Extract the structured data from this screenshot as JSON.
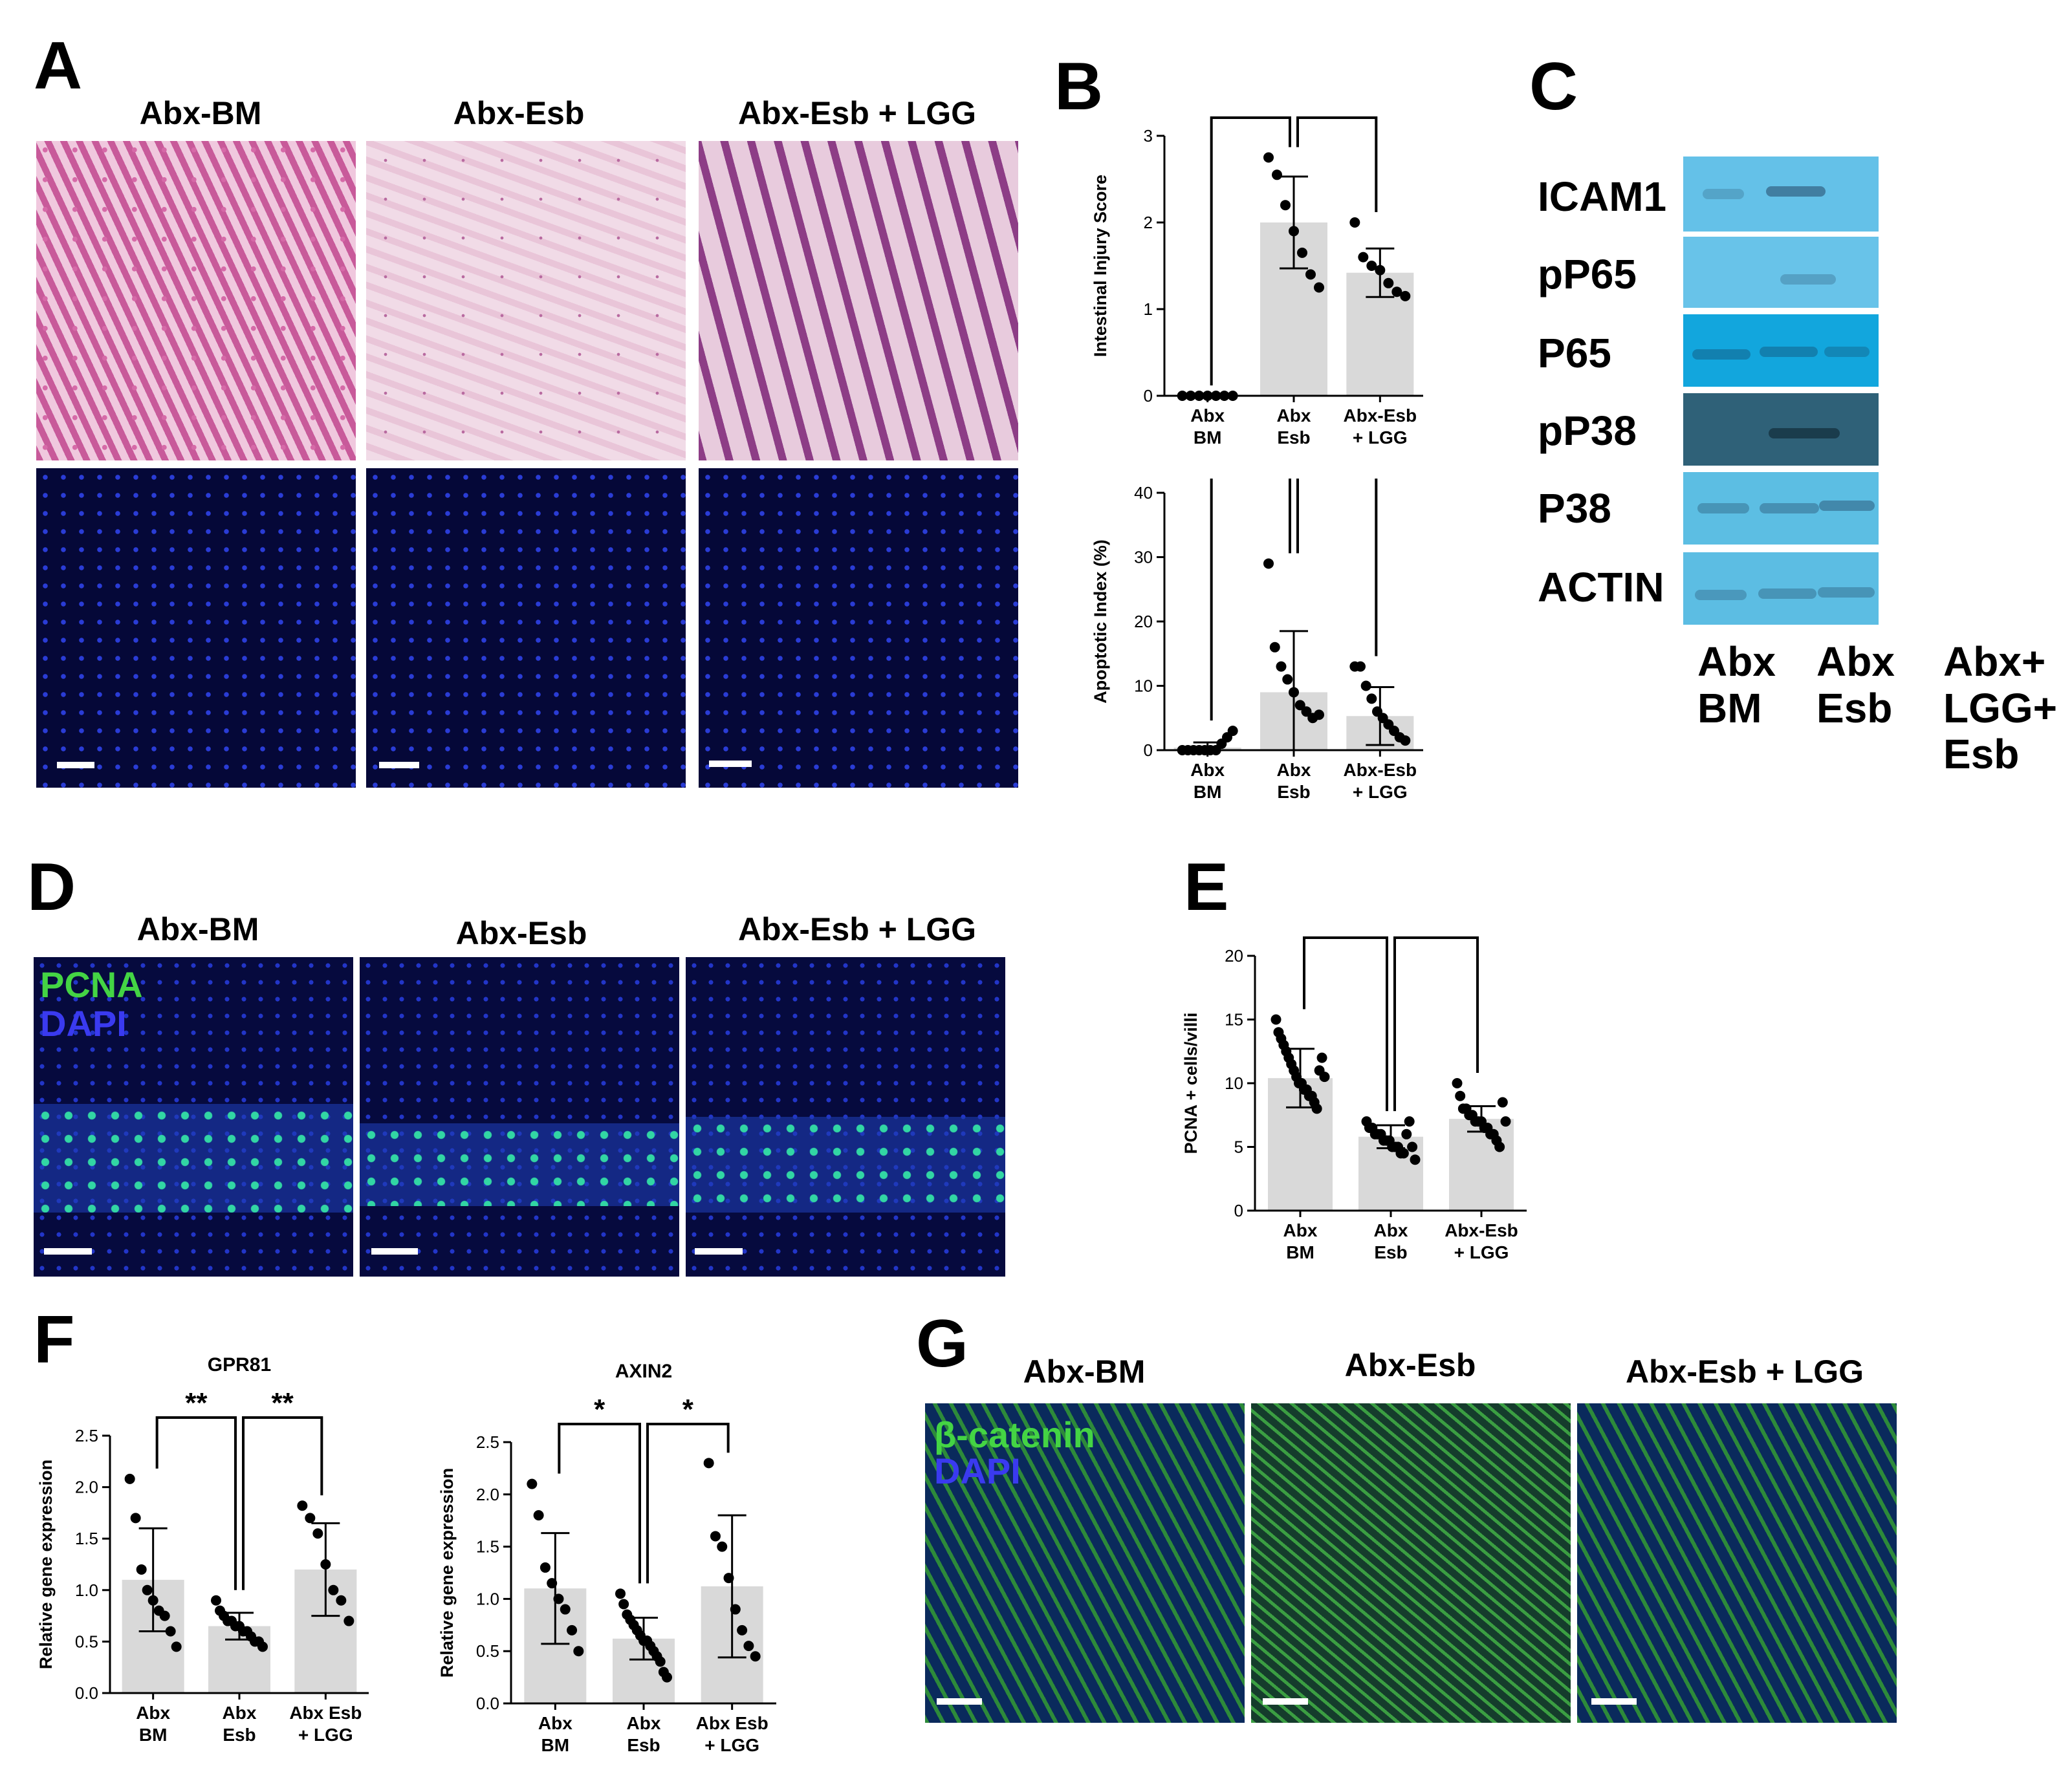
{
  "panels": {
    "A": {
      "label": "A",
      "columns": [
        "Abx-BM",
        "Abx-Esb",
        "Abx-Esb + LGG"
      ]
    },
    "C": {
      "label": "C",
      "rows": [
        "ICAM1",
        "pP65",
        "P65",
        "pP38",
        "P38",
        "ACTIN"
      ],
      "lanes": [
        [
          "Abx",
          "BM"
        ],
        [
          "Abx",
          "Esb"
        ],
        [
          "Abx+",
          "LGG+",
          "Esb"
        ]
      ]
    },
    "D": {
      "label": "D",
      "columns": [
        "Abx-BM",
        "Abx-Esb",
        "Abx-Esb + LGG"
      ],
      "stain_primary": "PCNA",
      "stain_secondary": "DAPI"
    },
    "G": {
      "label": "G",
      "columns": [
        "Abx-BM",
        "Abx-Esb",
        "Abx-Esb + LGG"
      ],
      "stain_primary": "β-catenin",
      "stain_secondary": "DAPI"
    }
  },
  "colors": {
    "pcna": "#44d444",
    "dapi": "#3a3af0",
    "bar": "#d9d9d9",
    "wb": "#6fc6e8"
  },
  "chart_data": [
    {
      "id": "B1",
      "label": "B",
      "type": "bar",
      "title": "",
      "ylabel": "Intestinal Injury Score",
      "ylim": [
        0,
        3
      ],
      "yticks": [
        0,
        1,
        2,
        3
      ],
      "categories": [
        [
          "Abx",
          "BM"
        ],
        [
          "Abx",
          "Esb"
        ],
        [
          "Abx-Esb",
          "+ LGG"
        ]
      ],
      "values": [
        0,
        2.0,
        1.42
      ],
      "sd": [
        0,
        0.53,
        0.28
      ],
      "points": [
        [
          0,
          0,
          0,
          0,
          0,
          0,
          0
        ],
        [
          2.75,
          2.55,
          2.2,
          1.9,
          1.65,
          1.4,
          1.25
        ],
        [
          2.0,
          1.6,
          1.5,
          1.45,
          1.3,
          1.2,
          1.15
        ]
      ],
      "sig": [
        {
          "from": 0,
          "to": 1,
          "text": "****"
        },
        {
          "from": 1,
          "to": 2,
          "text": "*"
        }
      ]
    },
    {
      "id": "B2",
      "label": "",
      "type": "bar",
      "title": "",
      "ylabel": "Apoptotic Index (%)",
      "ylim": [
        0,
        40
      ],
      "yticks": [
        0,
        10,
        20,
        30,
        40
      ],
      "categories": [
        [
          "Abx",
          "BM"
        ],
        [
          "Abx",
          "Esb"
        ],
        [
          "Abx-Esb",
          "+ LGG"
        ]
      ],
      "values": [
        0.4,
        9.0,
        5.3
      ],
      "sd": [
        0.8,
        9.5,
        4.5
      ],
      "points": [
        [
          0,
          0,
          0,
          0,
          0,
          0,
          0,
          1,
          2,
          3
        ],
        [
          29,
          16,
          13,
          11,
          9,
          7,
          6,
          5,
          5.5
        ],
        [
          13,
          13,
          10,
          8,
          6,
          5,
          4,
          3,
          2,
          1.5
        ]
      ],
      "sig": [
        {
          "from": 0,
          "to": 1,
          "text": "****"
        },
        {
          "from": 1,
          "to": 2,
          "text": "*"
        }
      ]
    },
    {
      "id": "E",
      "label": "E",
      "type": "bar",
      "title": "",
      "ylabel": "PCNA + cells/villi",
      "ylim": [
        0,
        20
      ],
      "yticks": [
        0,
        5,
        10,
        15,
        20
      ],
      "categories": [
        [
          "Abx",
          "BM"
        ],
        [
          "Abx",
          "Esb"
        ],
        [
          "Abx-Esb",
          "+ LGG"
        ]
      ],
      "values": [
        10.4,
        5.8,
        7.2
      ],
      "sd": [
        2.3,
        0.9,
        1.0
      ],
      "points": [
        [
          15,
          14,
          13.5,
          13,
          12.5,
          12,
          11.5,
          11,
          10.5,
          10,
          10,
          9.5,
          9.5,
          9,
          9,
          8.5,
          8,
          11,
          12,
          10.5
        ],
        [
          7,
          6.5,
          6.5,
          6,
          6,
          6,
          5.5,
          5.5,
          5.5,
          5,
          5,
          5,
          4.5,
          4.5,
          6,
          7,
          5,
          4
        ],
        [
          10,
          9,
          8,
          8,
          7.5,
          7.5,
          7,
          7,
          7,
          6.5,
          6.5,
          6,
          6,
          5.5,
          5,
          8.5,
          7
        ]
      ],
      "sig": [
        {
          "from": 0,
          "to": 1,
          "text": "****"
        },
        {
          "from": 1,
          "to": 2,
          "text": "*"
        }
      ]
    },
    {
      "id": "F1",
      "label": "F",
      "type": "bar",
      "title": "GPR81",
      "ylabel": "Relative gene expression",
      "ylim": [
        0,
        2.5
      ],
      "yticks": [
        "0.0",
        "0.5",
        "1.0",
        "1.5",
        "2.0",
        "2.5"
      ],
      "categories": [
        [
          "Abx",
          "BM"
        ],
        [
          "Abx",
          "Esb"
        ],
        [
          "Abx Esb",
          "+ LGG"
        ]
      ],
      "values": [
        1.1,
        0.65,
        1.2
      ],
      "sd": [
        0.5,
        0.13,
        0.45
      ],
      "points": [
        [
          2.08,
          1.7,
          1.2,
          1.0,
          0.9,
          0.8,
          0.75,
          0.6,
          0.45
        ],
        [
          0.9,
          0.8,
          0.75,
          0.7,
          0.7,
          0.65,
          0.65,
          0.6,
          0.6,
          0.55,
          0.5,
          0.5,
          0.45
        ],
        [
          1.82,
          1.7,
          1.55,
          1.25,
          1.0,
          0.9,
          0.7
        ]
      ],
      "sig": [
        {
          "from": 0,
          "to": 1,
          "text": "**"
        },
        {
          "from": 1,
          "to": 2,
          "text": "**"
        }
      ]
    },
    {
      "id": "F2",
      "label": "",
      "type": "bar",
      "title": "AXIN2",
      "ylabel": "Relative gene expression",
      "ylim": [
        0,
        2.5
      ],
      "yticks": [
        "0.0",
        "0.5",
        "1.0",
        "1.5",
        "2.0",
        "2.5"
      ],
      "categories": [
        [
          "Abx",
          "BM"
        ],
        [
          "Abx",
          "Esb"
        ],
        [
          "Abx Esb",
          "+ LGG"
        ]
      ],
      "values": [
        1.1,
        0.62,
        1.12
      ],
      "sd": [
        0.53,
        0.2,
        0.68
      ],
      "points": [
        [
          2.1,
          1.8,
          1.3,
          1.15,
          1.0,
          0.9,
          0.7,
          0.5
        ],
        [
          1.05,
          0.95,
          0.85,
          0.8,
          0.75,
          0.7,
          0.65,
          0.6,
          0.6,
          0.55,
          0.5,
          0.45,
          0.4,
          0.3,
          0.25
        ],
        [
          2.3,
          1.6,
          1.5,
          1.2,
          0.9,
          0.7,
          0.55,
          0.45
        ]
      ],
      "sig": [
        {
          "from": 0,
          "to": 1,
          "text": "*"
        },
        {
          "from": 1,
          "to": 2,
          "text": "*"
        }
      ]
    }
  ]
}
